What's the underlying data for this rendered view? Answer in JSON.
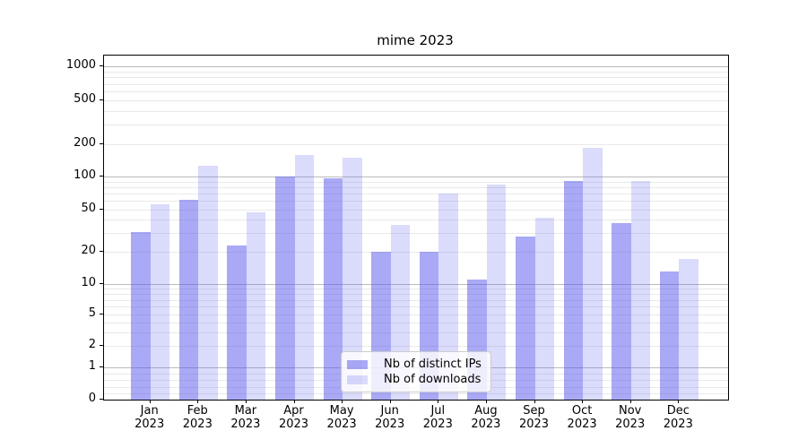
{
  "title": "mime 2023",
  "chart_data": {
    "type": "bar",
    "title": "mime 2023",
    "yscale": "symlog",
    "grid": true,
    "legend_position": "lower center",
    "ylim": [
      0,
      1300
    ],
    "y_ticks": [
      0,
      1,
      2,
      5,
      10,
      20,
      50,
      100,
      200,
      500,
      1000
    ],
    "x_year": "2023",
    "x_months": [
      "Jan",
      "Feb",
      "Mar",
      "Apr",
      "May",
      "Jun",
      "Jul",
      "Aug",
      "Sep",
      "Oct",
      "Nov",
      "Dec"
    ],
    "categories": [
      "Jan 2023",
      "Feb 2023",
      "Mar 2023",
      "Apr 2023",
      "May 2023",
      "Jun 2023",
      "Jul 2023",
      "Aug 2023",
      "Sep 2023",
      "Oct 2023",
      "Nov 2023",
      "Dec 2023"
    ],
    "series": [
      {
        "name": "Nb of distinct IPs",
        "color": "rgba(90,90,235,0.52)",
        "values": [
          31,
          61,
          23,
          100,
          97,
          20,
          20,
          11,
          28,
          91,
          37,
          13
        ]
      },
      {
        "name": "Nb of downloads",
        "color": "rgba(90,90,235,0.22)",
        "values": [
          56,
          127,
          47,
          158,
          149,
          36,
          70,
          84,
          42,
          186,
          92,
          17
        ]
      }
    ],
    "colors": {
      "grid_major": "#bbbbbb",
      "grid_minor": "#e9e9e9",
      "axis": "#000000",
      "bar_dark": "rgba(90,90,235,0.52)",
      "bar_light": "rgba(90,90,235,0.22)"
    }
  }
}
